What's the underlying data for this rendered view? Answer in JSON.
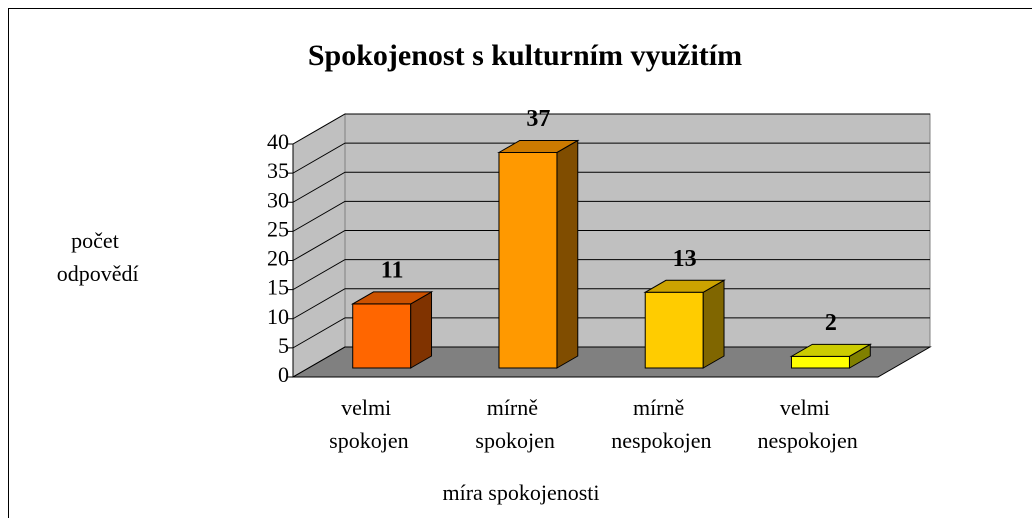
{
  "chart_data": {
    "type": "bar3d",
    "title": "Spokojenost s kulturním využitím",
    "categories": [
      "velmi spokojen",
      "mírně spokojen",
      "mírně nespokojen",
      "velmi nespokojen"
    ],
    "values": [
      11,
      37,
      13,
      2
    ],
    "colors": [
      "#ff6600",
      "#ff9900",
      "#ffcc00",
      "#ffff00"
    ],
    "ylabel": "počet odpovědí",
    "xlabel": "míra spokojenosti",
    "ylim": [
      0,
      40
    ],
    "yticks": [
      0,
      5,
      10,
      15,
      20,
      25,
      30,
      35,
      40
    ],
    "grid": true
  }
}
